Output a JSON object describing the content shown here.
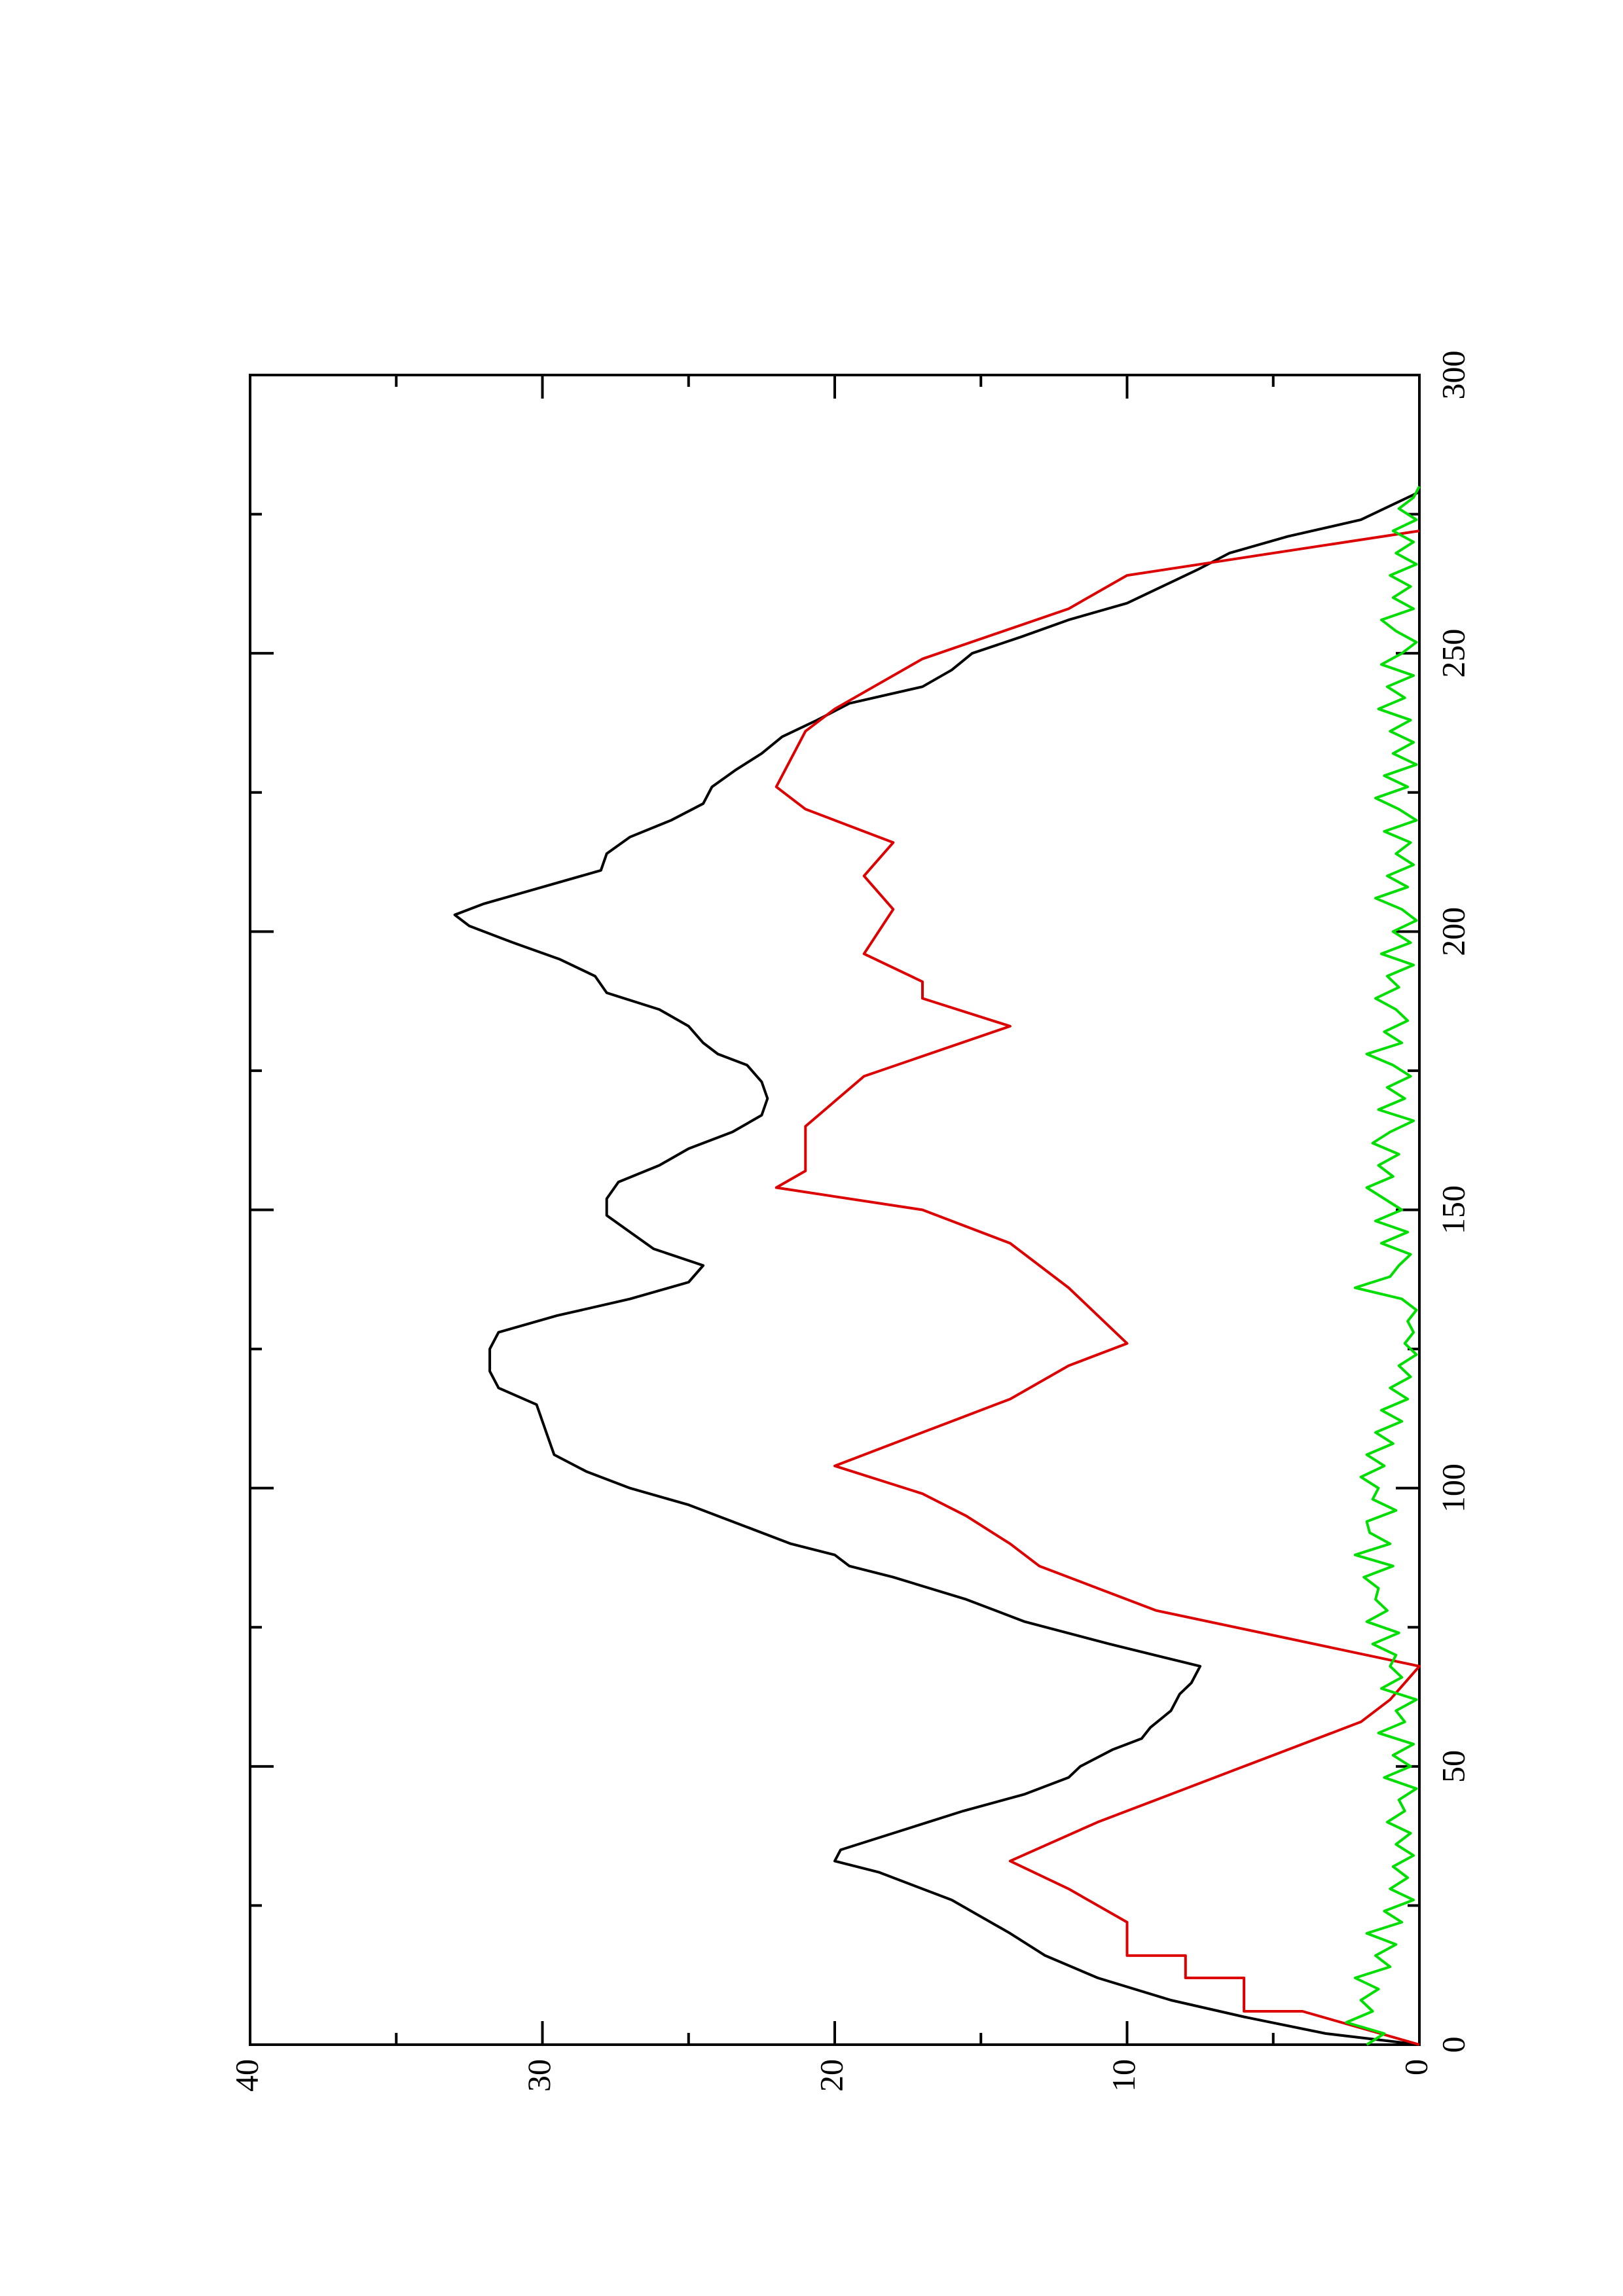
{
  "chart_data": {
    "type": "line",
    "orientation": "rotated 90 degrees counter-clockwise (x axis runs bottom to top, y axis runs right to left)",
    "title": "",
    "xlabel": "",
    "ylabel": "",
    "xlim": [
      0,
      300
    ],
    "ylim": [
      0,
      40
    ],
    "grid": false,
    "legend": "none",
    "x_ticks_major": [
      0,
      50,
      100,
      150,
      200,
      250,
      300
    ],
    "x_ticks_minor": [
      25,
      75,
      125,
      175,
      225,
      275
    ],
    "y_ticks_major": [
      0,
      10,
      20,
      30,
      40
    ],
    "y_ticks_minor": [
      5,
      15,
      25,
      35
    ],
    "x_tick_labels": [
      "0",
      "50",
      "100",
      "150",
      "200",
      "250",
      "300"
    ],
    "y_tick_labels": [
      "0",
      "10",
      "20",
      "30",
      "40"
    ],
    "series": [
      {
        "color": "#000000",
        "x": [
          0,
          2,
          5,
          8,
          12,
          16,
          20,
          26,
          31,
          33,
          35,
          38,
          42,
          45,
          48,
          50,
          53,
          55,
          57,
          60,
          63,
          65,
          68,
          72,
          76,
          80,
          84,
          86,
          88,
          90,
          93,
          97,
          100,
          103,
          106,
          109,
          112,
          115,
          118,
          121,
          125,
          128,
          131,
          134,
          137,
          140,
          143,
          146,
          149,
          152,
          155,
          158,
          161,
          164,
          167,
          170,
          173,
          176,
          178,
          180,
          183,
          186,
          189,
          192,
          195,
          198,
          201,
          203,
          205,
          208,
          211,
          214,
          217,
          220,
          223,
          226,
          229,
          232,
          235,
          238,
          241,
          244,
          247,
          250,
          253,
          256,
          259,
          262,
          265,
          268,
          271,
          274,
          277,
          279
        ],
        "values": [
          0,
          3.2,
          6,
          8.5,
          11,
          12.8,
          14,
          16,
          18.5,
          20,
          19.8,
          18,
          15.6,
          13.5,
          12,
          11.6,
          10.5,
          9.5,
          9.2,
          8.5,
          8.2,
          7.8,
          7.5,
          10.6,
          13.5,
          15.5,
          18,
          19.5,
          20,
          21.5,
          23,
          25,
          27,
          28.5,
          29.6,
          29.8,
          30,
          30.2,
          31.5,
          31.8,
          31.8,
          31.5,
          29.5,
          27,
          25,
          24.5,
          26.2,
          27,
          27.8,
          27.8,
          27.4,
          26,
          25,
          23.5,
          22.5,
          22.3,
          22.5,
          23,
          24,
          24.5,
          25,
          26,
          27.8,
          28.2,
          29.4,
          31,
          32.5,
          33,
          32,
          30,
          28,
          27.8,
          27,
          25.6,
          24.5,
          24.2,
          23.4,
          22.5,
          21.8,
          20.6,
          19.5,
          17,
          16,
          15.3,
          13.6,
          12,
          10,
          8.8,
          7.6,
          6.5,
          4.5,
          2,
          0.8,
          0
        ]
      },
      {
        "color": "#dd0000",
        "x": [
          0,
          6,
          6,
          12,
          12,
          16,
          16,
          22,
          22,
          28,
          28,
          33,
          33,
          40,
          40,
          44,
          44,
          50,
          50,
          54,
          54,
          58,
          58,
          62,
          62,
          68,
          68,
          78,
          78,
          82,
          82,
          86,
          86,
          90,
          90,
          95,
          95,
          99,
          99,
          104,
          104,
          108,
          108,
          112,
          112,
          116,
          116,
          122,
          122,
          126,
          126,
          136,
          136,
          144,
          144,
          150,
          150,
          154,
          154,
          157,
          157,
          165,
          165,
          174,
          174,
          183,
          183,
          188,
          188,
          191,
          191,
          196,
          196,
          204,
          204,
          210,
          210,
          216,
          216,
          222,
          222,
          226,
          226,
          236,
          236,
          240,
          240,
          249,
          249,
          258,
          258,
          264,
          264,
          272
        ],
        "values": [
          0,
          4,
          6,
          6,
          8,
          8,
          10,
          10,
          10,
          12,
          12,
          14,
          14,
          11,
          11,
          9,
          9,
          6,
          6,
          4,
          4,
          2,
          2,
          1,
          1,
          0,
          0,
          9,
          9,
          11,
          11,
          13,
          13,
          14,
          14,
          15.5,
          15.5,
          17,
          17,
          20,
          20,
          18,
          18,
          16,
          16,
          14,
          14,
          12,
          12,
          10,
          10,
          12,
          12,
          14,
          14,
          17,
          17,
          22,
          22,
          21,
          21,
          21,
          21,
          19,
          19,
          14,
          14,
          17,
          17,
          17,
          17,
          19,
          19,
          18,
          18,
          19,
          19,
          18,
          18,
          21,
          21,
          22,
          22,
          21,
          21,
          20,
          20,
          17,
          17,
          12,
          12,
          10,
          10,
          0
        ]
      },
      {
        "color": "#00dd00",
        "x": [
          0,
          2,
          4,
          6,
          8,
          10,
          12,
          14,
          16,
          18,
          20,
          22,
          24,
          26,
          28,
          30,
          32,
          34,
          36,
          38,
          40,
          42,
          44,
          46,
          48,
          50,
          52,
          54,
          56,
          58,
          60,
          62,
          64,
          66,
          68,
          70,
          72,
          74,
          76,
          78,
          80,
          82,
          84,
          86,
          88,
          90,
          92,
          94,
          96,
          98,
          100,
          102,
          104,
          106,
          108,
          110,
          112,
          114,
          116,
          118,
          120,
          122,
          124,
          126,
          128,
          130,
          132,
          134,
          136,
          138,
          140,
          142,
          144,
          146,
          148,
          150,
          152,
          154,
          156,
          158,
          160,
          162,
          164,
          166,
          168,
          170,
          172,
          174,
          176,
          178,
          180,
          182,
          184,
          186,
          188,
          190,
          192,
          194,
          196,
          198,
          200,
          202,
          204,
          206,
          208,
          210,
          212,
          214,
          216,
          218,
          220,
          222,
          224,
          226,
          228,
          230,
          232,
          234,
          236,
          238,
          240,
          242,
          244,
          246,
          248,
          250,
          252,
          254,
          256,
          258,
          260,
          262,
          264,
          266,
          268,
          270,
          272,
          274,
          276,
          278,
          280
        ],
        "values": [
          1.8,
          1.2,
          2.5,
          1.6,
          2.0,
          1.4,
          2.2,
          1.0,
          1.5,
          0.8,
          1.8,
          0.6,
          1.2,
          0.2,
          1.0,
          0.4,
          0.9,
          0.2,
          0.8,
          0.3,
          1.1,
          0.5,
          0.7,
          0.1,
          1.2,
          0.3,
          0.9,
          0.2,
          1.4,
          0.5,
          0.8,
          0.1,
          1.3,
          0.6,
          1.0,
          0.8,
          1.6,
          0.7,
          1.8,
          1.1,
          1.5,
          1.4,
          1.9,
          0.9,
          2.2,
          1.0,
          1.7,
          1.8,
          0.8,
          1.6,
          1.4,
          2.0,
          1.2,
          1.8,
          0.9,
          1.5,
          0.6,
          1.3,
          0.4,
          1.0,
          0.3,
          0.7,
          0.1,
          0.5,
          0.2,
          0.4,
          0.1,
          0.6,
          2.2,
          1.0,
          0.7,
          0.3,
          1.3,
          0.4,
          1.5,
          0.6,
          1.2,
          1.8,
          0.9,
          1.4,
          0.7,
          1.6,
          1.0,
          0.2,
          1.4,
          0.5,
          1.1,
          0.3,
          0.9,
          1.8,
          0.6,
          1.2,
          0.4,
          0.8,
          1.5,
          0.7,
          1.1,
          0.2,
          1.3,
          0.3,
          0.9,
          0.1,
          0.6,
          1.5,
          0.4,
          1.1,
          0.2,
          0.8,
          0.3,
          1.2,
          0.1,
          0.7,
          1.5,
          0.4,
          1.2,
          0.1,
          0.9,
          0.2,
          1.0,
          0.3,
          1.4,
          0.5,
          1.1,
          0.2,
          1.3,
          0.6,
          0.1,
          0.8,
          1.3,
          0.2,
          0.9,
          0.3,
          1.0,
          0.1,
          0.8,
          0.2,
          0.9,
          0.1,
          0.7,
          0.2,
          0.0
        ]
      }
    ]
  }
}
